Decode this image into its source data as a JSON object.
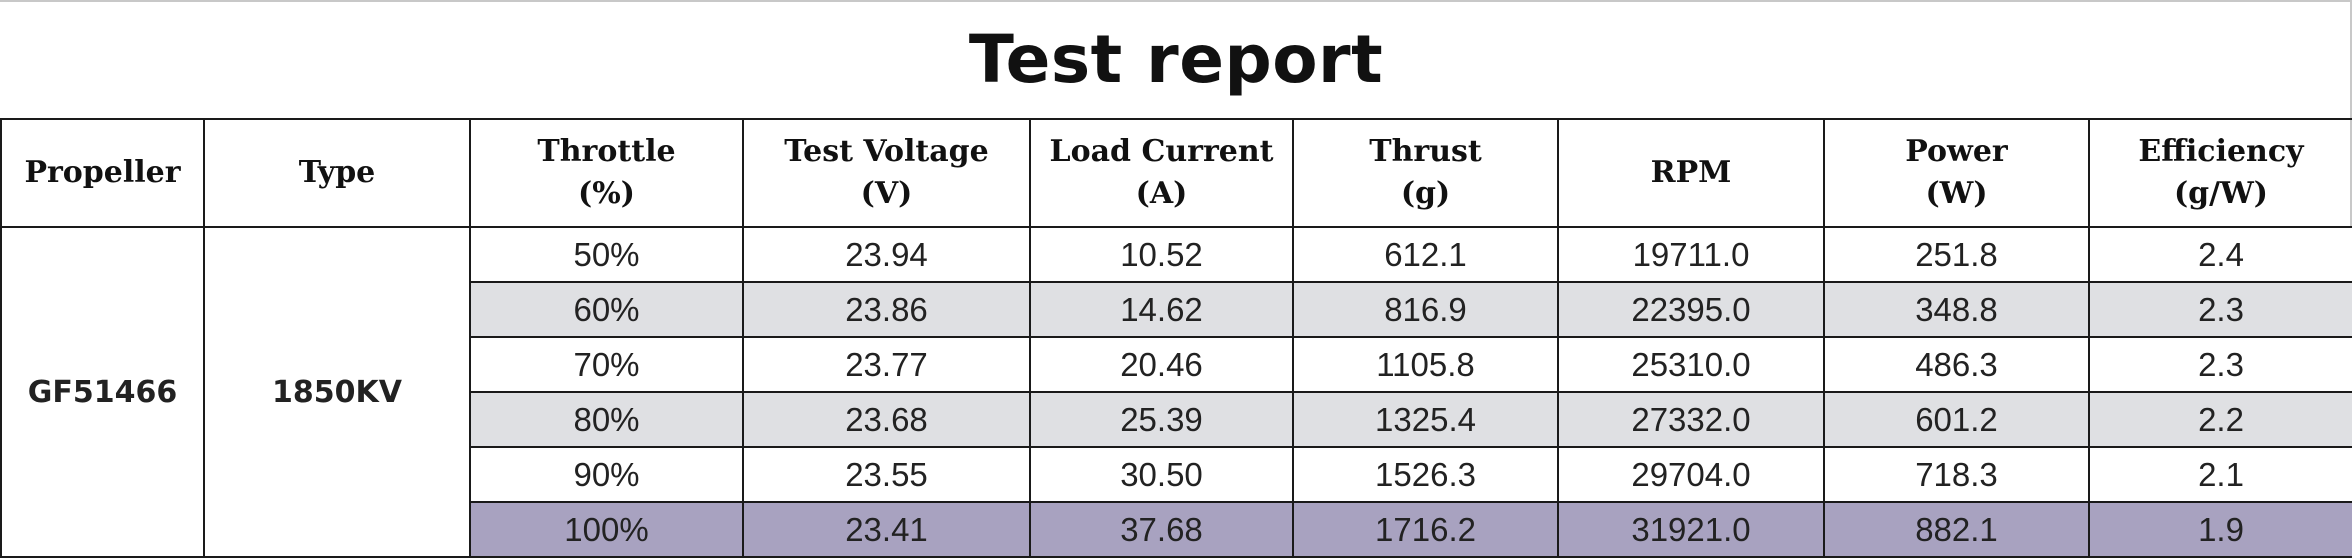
{
  "title": "Test report",
  "headers": [
    {
      "line1": "Propeller",
      "line2": ""
    },
    {
      "line1": "Type",
      "line2": ""
    },
    {
      "line1": "Throttle",
      "line2": "(%)"
    },
    {
      "line1": "Test Voltage",
      "line2": "(V)"
    },
    {
      "line1": "Load Current",
      "line2": "(A)"
    },
    {
      "line1": "Thrust",
      "line2": "(g)"
    },
    {
      "line1": "RPM",
      "line2": ""
    },
    {
      "line1": "Power",
      "line2": "(W)"
    },
    {
      "line1": "Efficiency",
      "line2": "(g/W)"
    }
  ],
  "propeller": "GF51466",
  "type": "1850KV",
  "rows": [
    {
      "throttle": "50%",
      "voltage": "23.94",
      "current": "10.52",
      "thrust": "612.1",
      "rpm": "19711.0",
      "power": "251.8",
      "efficiency": "2.4",
      "shade": "#ffffff"
    },
    {
      "throttle": "60%",
      "voltage": "23.86",
      "current": "14.62",
      "thrust": "816.9",
      "rpm": "22395.0",
      "power": "348.8",
      "efficiency": "2.3",
      "shade": "#dfe0e3"
    },
    {
      "throttle": "70%",
      "voltage": "23.77",
      "current": "20.46",
      "thrust": "1105.8",
      "rpm": "25310.0",
      "power": "486.3",
      "efficiency": "2.3",
      "shade": "#ffffff"
    },
    {
      "throttle": "80%",
      "voltage": "23.68",
      "current": "25.39",
      "thrust": "1325.4",
      "rpm": "27332.0",
      "power": "601.2",
      "efficiency": "2.2",
      "shade": "#dfe0e3"
    },
    {
      "throttle": "90%",
      "voltage": "23.55",
      "current": "30.50",
      "thrust": "1526.3",
      "rpm": "29704.0",
      "power": "718.3",
      "efficiency": "2.1",
      "shade": "#ffffff"
    },
    {
      "throttle": "100%",
      "voltage": "23.41",
      "current": "37.68",
      "thrust": "1716.2",
      "rpm": "31921.0",
      "power": "882.1",
      "efficiency": "1.9",
      "shade": "#a8a2c0"
    }
  ]
}
